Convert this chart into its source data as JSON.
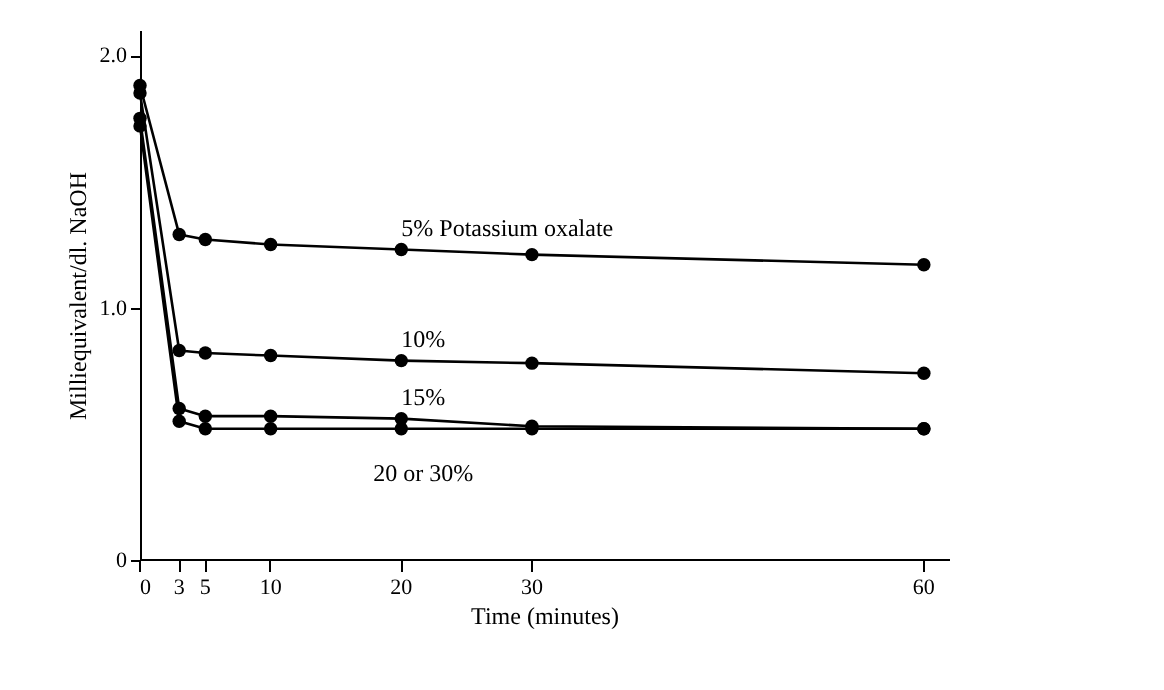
{
  "chart_data": {
    "type": "line",
    "xlabel": "Time (minutes)",
    "ylabel": "Milliequivalent/dl. NaOH",
    "xlim": [
      0,
      62
    ],
    "xticks": [
      0,
      3,
      5,
      10,
      20,
      30,
      60
    ],
    "ylim": [
      0,
      2.1
    ],
    "yticks": [
      0,
      {
        "value": 1,
        "label": "1.0"
      },
      {
        "value": 2,
        "label": "2.0"
      }
    ],
    "grid": false,
    "marker": "circle",
    "line_style": "solid",
    "series": [
      {
        "name": "5% Potassium oxalate",
        "color": "#000000",
        "x": [
          0,
          3,
          5,
          10,
          20,
          30,
          60
        ],
        "values": [
          1.88,
          1.29,
          1.27,
          1.25,
          1.23,
          1.21,
          1.17
        ]
      },
      {
        "name": "10%",
        "color": "#000000",
        "x": [
          0,
          3,
          5,
          10,
          20,
          30,
          60
        ],
        "values": [
          1.85,
          0.83,
          0.82,
          0.81,
          0.79,
          0.78,
          0.74
        ]
      },
      {
        "name": "15%",
        "color": "#000000",
        "x": [
          0,
          3,
          5,
          10,
          20,
          30,
          60
        ],
        "values": [
          1.75,
          0.6,
          0.57,
          0.57,
          0.56,
          0.53,
          0.52
        ]
      },
      {
        "name": "20 or 30%",
        "color": "#000000",
        "x": [
          0,
          3,
          5,
          10,
          20,
          30,
          60
        ],
        "values": [
          1.72,
          0.55,
          0.52,
          0.52,
          0.52,
          0.52,
          0.52
        ]
      }
    ]
  }
}
